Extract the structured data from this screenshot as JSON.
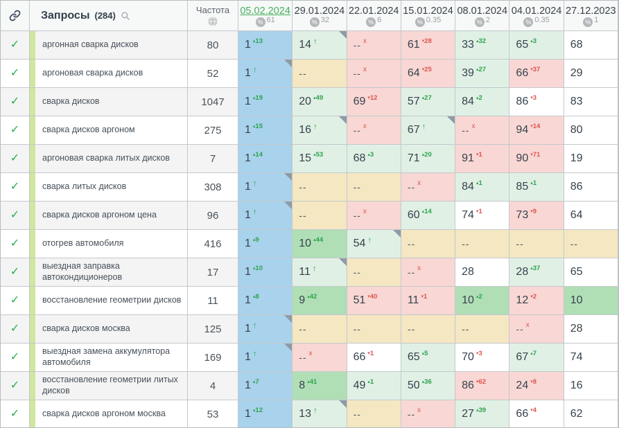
{
  "header": {
    "queries_label": "Запросы",
    "queries_count": "(284)",
    "frequency_label": "Частота"
  },
  "dates": [
    {
      "label": "05.02.2024",
      "share": "61",
      "current": true
    },
    {
      "label": "29.01.2024",
      "share": "32",
      "current": false
    },
    {
      "label": "22.01.2024",
      "share": "6",
      "current": false
    },
    {
      "label": "15.01.2024",
      "share": "0.35",
      "current": false
    },
    {
      "label": "08.01.2024",
      "share": "2",
      "current": false
    },
    {
      "label": "04.01.2024",
      "share": "0.35",
      "current": false
    },
    {
      "label": "27.12.2023",
      "share": "1",
      "current": false
    }
  ],
  "legend": {
    "up_marker": "▴",
    "down_marker": "▾",
    "new_arrow": "↑",
    "dropped_marker": "x",
    "absent": "--",
    "percent_symbol": "%",
    "check_symbol": "✓"
  },
  "colors": {
    "current_bg": "#a9d2ec",
    "improved_bg": "#e0f0e5",
    "top_bg": "#b0dfb6",
    "declined_bg": "#f8d7d4",
    "absent_bg": "#f4e7c2",
    "up": "#2ca24c",
    "down": "#dd5450",
    "current_date": "#43b05c",
    "check": "#27ae52",
    "strip": "#cfe79e"
  },
  "rows": [
    {
      "query": "аргонная сварка дисков",
      "frequency": "80",
      "cells": [
        {
          "v": "1",
          "chg": "13",
          "dir": "up",
          "bg": "blue"
        },
        {
          "v": "14",
          "arrow": true,
          "bg": "palegreen",
          "corner": true
        },
        {
          "v": "--",
          "x": true,
          "bg": "pink"
        },
        {
          "v": "61",
          "chg": "28",
          "dir": "down",
          "bg": "pink"
        },
        {
          "v": "33",
          "chg": "32",
          "dir": "up",
          "bg": "palegreen"
        },
        {
          "v": "65",
          "chg": "3",
          "dir": "up",
          "bg": "palegreen"
        },
        {
          "v": "68",
          "bg": "white"
        }
      ]
    },
    {
      "query": "аргоновая сварка дисков",
      "frequency": "52",
      "cells": [
        {
          "v": "1",
          "arrow": true,
          "bg": "blue",
          "corner": true
        },
        {
          "v": "--",
          "bg": "tan"
        },
        {
          "v": "--",
          "x": true,
          "bg": "pink"
        },
        {
          "v": "64",
          "chg": "25",
          "dir": "down",
          "bg": "pink"
        },
        {
          "v": "39",
          "chg": "27",
          "dir": "up",
          "bg": "palegreen"
        },
        {
          "v": "66",
          "chg": "37",
          "dir": "down",
          "bg": "pink"
        },
        {
          "v": "29",
          "bg": "white"
        }
      ]
    },
    {
      "query": "сварка дисков",
      "frequency": "1047",
      "cells": [
        {
          "v": "1",
          "chg": "19",
          "dir": "up",
          "bg": "blue"
        },
        {
          "v": "20",
          "chg": "49",
          "dir": "up",
          "bg": "palegreen"
        },
        {
          "v": "69",
          "chg": "12",
          "dir": "down",
          "bg": "pink"
        },
        {
          "v": "57",
          "chg": "27",
          "dir": "up",
          "bg": "palegreen"
        },
        {
          "v": "84",
          "chg": "2",
          "dir": "up",
          "bg": "palegreen"
        },
        {
          "v": "86",
          "chg": "3",
          "dir": "down",
          "bg": "white"
        },
        {
          "v": "83",
          "bg": "white"
        }
      ]
    },
    {
      "query": "сварка дисков аргоном",
      "frequency": "275",
      "cells": [
        {
          "v": "1",
          "chg": "15",
          "dir": "up",
          "bg": "blue"
        },
        {
          "v": "16",
          "arrow": true,
          "bg": "palegreen",
          "corner": true
        },
        {
          "v": "--",
          "x": true,
          "bg": "pink"
        },
        {
          "v": "67",
          "arrow": true,
          "bg": "palegreen",
          "corner": true
        },
        {
          "v": "--",
          "x": true,
          "bg": "pink"
        },
        {
          "v": "94",
          "chg": "14",
          "dir": "down",
          "bg": "pink"
        },
        {
          "v": "80",
          "bg": "white"
        }
      ]
    },
    {
      "query": "аргоновая сварка литых дисков",
      "frequency": "7",
      "cells": [
        {
          "v": "1",
          "chg": "14",
          "dir": "up",
          "bg": "blue"
        },
        {
          "v": "15",
          "chg": "53",
          "dir": "up",
          "bg": "palegreen"
        },
        {
          "v": "68",
          "chg": "3",
          "dir": "up",
          "bg": "palegreen"
        },
        {
          "v": "71",
          "chg": "20",
          "dir": "up",
          "bg": "palegreen"
        },
        {
          "v": "91",
          "chg": "1",
          "dir": "down",
          "bg": "pink"
        },
        {
          "v": "90",
          "chg": "71",
          "dir": "down",
          "bg": "pink"
        },
        {
          "v": "19",
          "bg": "white"
        }
      ]
    },
    {
      "query": "сварка литых дисков",
      "frequency": "308",
      "cells": [
        {
          "v": "1",
          "arrow": true,
          "bg": "blue",
          "corner": true
        },
        {
          "v": "--",
          "bg": "tan"
        },
        {
          "v": "--",
          "bg": "tan"
        },
        {
          "v": "--",
          "x": true,
          "bg": "pink"
        },
        {
          "v": "84",
          "chg": "1",
          "dir": "up",
          "bg": "palegreen"
        },
        {
          "v": "85",
          "chg": "1",
          "dir": "up",
          "bg": "palegreen"
        },
        {
          "v": "86",
          "bg": "white"
        }
      ]
    },
    {
      "query": "сварка дисков аргоном цена",
      "frequency": "96",
      "cells": [
        {
          "v": "1",
          "arrow": true,
          "bg": "blue",
          "corner": true
        },
        {
          "v": "--",
          "bg": "tan"
        },
        {
          "v": "--",
          "x": true,
          "bg": "pink"
        },
        {
          "v": "60",
          "chg": "14",
          "dir": "up",
          "bg": "palegreen"
        },
        {
          "v": "74",
          "chg": "1",
          "dir": "down",
          "bg": "white"
        },
        {
          "v": "73",
          "chg": "9",
          "dir": "down",
          "bg": "pink"
        },
        {
          "v": "64",
          "bg": "white"
        }
      ]
    },
    {
      "query": "отогрев автомобиля",
      "frequency": "416",
      "cells": [
        {
          "v": "1",
          "chg": "9",
          "dir": "up",
          "bg": "blue"
        },
        {
          "v": "10",
          "chg": "44",
          "dir": "up",
          "bg": "brightgreen"
        },
        {
          "v": "54",
          "arrow": true,
          "bg": "palegreen",
          "corner": true
        },
        {
          "v": "--",
          "bg": "tan"
        },
        {
          "v": "--",
          "bg": "tan"
        },
        {
          "v": "--",
          "bg": "tan"
        },
        {
          "v": "--",
          "bg": "tan"
        }
      ]
    },
    {
      "query": "выездная заправка автокондиционеров",
      "frequency": "17",
      "cells": [
        {
          "v": "1",
          "chg": "10",
          "dir": "up",
          "bg": "blue"
        },
        {
          "v": "11",
          "arrow": true,
          "bg": "palegreen",
          "corner": true
        },
        {
          "v": "--",
          "bg": "tan"
        },
        {
          "v": "--",
          "x": true,
          "bg": "pink"
        },
        {
          "v": "28",
          "bg": "white"
        },
        {
          "v": "28",
          "chg": "37",
          "dir": "up",
          "bg": "palegreen"
        },
        {
          "v": "65",
          "bg": "white"
        }
      ]
    },
    {
      "query": "восстановление геометрии дисков",
      "frequency": "11",
      "cells": [
        {
          "v": "1",
          "chg": "8",
          "dir": "up",
          "bg": "blue"
        },
        {
          "v": "9",
          "chg": "42",
          "dir": "up",
          "bg": "brightgreen"
        },
        {
          "v": "51",
          "chg": "40",
          "dir": "down",
          "bg": "pink"
        },
        {
          "v": "11",
          "chg": "1",
          "dir": "down",
          "bg": "pink"
        },
        {
          "v": "10",
          "chg": "2",
          "dir": "up",
          "bg": "brightgreen"
        },
        {
          "v": "12",
          "chg": "2",
          "dir": "down",
          "bg": "pink"
        },
        {
          "v": "10",
          "bg": "brightgreen"
        }
      ]
    },
    {
      "query": "сварка дисков москва",
      "frequency": "125",
      "cells": [
        {
          "v": "1",
          "arrow": true,
          "bg": "blue",
          "corner": true
        },
        {
          "v": "--",
          "bg": "tan"
        },
        {
          "v": "--",
          "bg": "tan"
        },
        {
          "v": "--",
          "bg": "tan"
        },
        {
          "v": "--",
          "bg": "tan"
        },
        {
          "v": "--",
          "x": true,
          "bg": "pink"
        },
        {
          "v": "28",
          "bg": "white"
        }
      ]
    },
    {
      "query": "выездная замена аккумулятора автомобиля",
      "frequency": "169",
      "cells": [
        {
          "v": "1",
          "arrow": true,
          "bg": "blue",
          "corner": true
        },
        {
          "v": "--",
          "x": true,
          "bg": "pink"
        },
        {
          "v": "66",
          "chg": "1",
          "dir": "down",
          "bg": "white"
        },
        {
          "v": "65",
          "chg": "5",
          "dir": "up",
          "bg": "palegreen"
        },
        {
          "v": "70",
          "chg": "3",
          "dir": "down",
          "bg": "white"
        },
        {
          "v": "67",
          "chg": "7",
          "dir": "up",
          "bg": "palegreen"
        },
        {
          "v": "74",
          "bg": "white"
        }
      ]
    },
    {
      "query": "восстановление геометрии литых дисков",
      "frequency": "4",
      "cells": [
        {
          "v": "1",
          "chg": "7",
          "dir": "up",
          "bg": "blue"
        },
        {
          "v": "8",
          "chg": "41",
          "dir": "up",
          "bg": "brightgreen"
        },
        {
          "v": "49",
          "chg": "1",
          "dir": "up",
          "bg": "palegreen"
        },
        {
          "v": "50",
          "chg": "36",
          "dir": "up",
          "bg": "palegreen"
        },
        {
          "v": "86",
          "chg": "62",
          "dir": "down",
          "bg": "pink"
        },
        {
          "v": "24",
          "chg": "8",
          "dir": "down",
          "bg": "pink"
        },
        {
          "v": "16",
          "bg": "white"
        }
      ]
    },
    {
      "query": "сварка дисков аргоном москва",
      "frequency": "53",
      "cells": [
        {
          "v": "1",
          "chg": "12",
          "dir": "up",
          "bg": "blue"
        },
        {
          "v": "13",
          "arrow": true,
          "bg": "palegreen",
          "corner": true
        },
        {
          "v": "--",
          "bg": "tan"
        },
        {
          "v": "--",
          "x": true,
          "bg": "pink"
        },
        {
          "v": "27",
          "chg": "39",
          "dir": "up",
          "bg": "palegreen"
        },
        {
          "v": "66",
          "chg": "4",
          "dir": "down",
          "bg": "white"
        },
        {
          "v": "62",
          "bg": "white"
        }
      ]
    }
  ]
}
